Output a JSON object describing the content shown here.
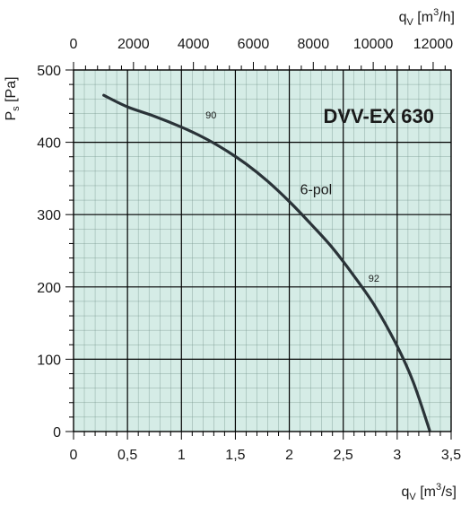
{
  "chart_data": {
    "type": "line",
    "title": "DVV-EX 630",
    "plot_background": "#d5ece6",
    "grid_color": "#000000",
    "curve_color": "#2a3338",
    "x_bottom": {
      "label_main": "q",
      "label_sub": "V",
      "label_unit_pre": "[m",
      "label_unit_sup": "3",
      "label_unit_post": "/s]",
      "range": [
        0,
        3.5
      ],
      "major_ticks": [
        0,
        0.5,
        1,
        1.5,
        2,
        2.5,
        3,
        3.5
      ],
      "tick_labels": [
        "0",
        "0,5",
        "1",
        "1,5",
        "2",
        "2,5",
        "3",
        "3,5"
      ],
      "minor_step": 0.1
    },
    "x_top": {
      "label_main": "q",
      "label_sub": "V",
      "label_unit_pre": "[m",
      "label_unit_sup": "3",
      "label_unit_post": "/h]",
      "range": [
        0,
        12600
      ],
      "ticks": [
        0,
        2000,
        4000,
        6000,
        8000,
        10000,
        12000
      ],
      "tick_labels": [
        "0",
        "2000",
        "4000",
        "6000",
        "8000",
        "10000",
        "12000"
      ],
      "minor_step": 400
    },
    "y": {
      "label_main": "P",
      "label_sub": "s",
      "label_unit": "[Pa]",
      "range": [
        0,
        500
      ],
      "ticks": [
        0,
        100,
        200,
        300,
        400,
        500
      ],
      "tick_labels": [
        "0",
        "100",
        "200",
        "300",
        "400",
        "500"
      ],
      "minor_step": 20
    },
    "series": [
      {
        "label": "6-pol",
        "x": [
          0.28,
          0.5,
          0.75,
          1.0,
          1.2,
          1.4,
          1.6,
          1.8,
          2.0,
          2.2,
          2.4,
          2.6,
          2.8,
          3.0,
          3.15,
          3.3
        ],
        "y": [
          465,
          449,
          436,
          421,
          407,
          390,
          370,
          346,
          318,
          287,
          254,
          215,
          172,
          118,
          68,
          2
        ],
        "label_at": [
          2.1,
          318
        ],
        "annotations": [
          {
            "text": "90",
            "at": [
              1.19,
              428
            ]
          },
          {
            "text": "92",
            "at": [
              2.7,
              202
            ]
          }
        ]
      }
    ]
  }
}
